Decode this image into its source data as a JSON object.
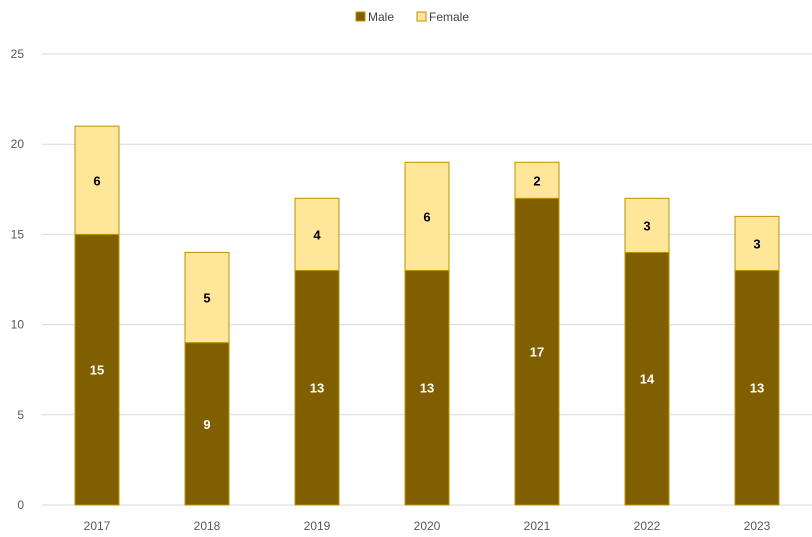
{
  "chart_data": {
    "type": "bar",
    "stacked": true,
    "categories": [
      "2017",
      "2018",
      "2019",
      "2020",
      "2021",
      "2022",
      "2023"
    ],
    "series": [
      {
        "name": "Male",
        "values": [
          15,
          9,
          13,
          13,
          17,
          14,
          13
        ],
        "color": "#7f5f00",
        "label_color": "#ffffff"
      },
      {
        "name": "Female",
        "values": [
          6,
          5,
          4,
          6,
          2,
          3,
          3
        ],
        "color": "#ffe699",
        "label_color": "#000000"
      }
    ],
    "ylim": [
      0,
      25
    ],
    "yticks": [
      "0",
      "5",
      "10",
      "15",
      "20",
      "25"
    ],
    "grid": true,
    "legend": "top-center",
    "bar_border_color": "#bf9000",
    "grid_color": "#d9d9d9"
  }
}
